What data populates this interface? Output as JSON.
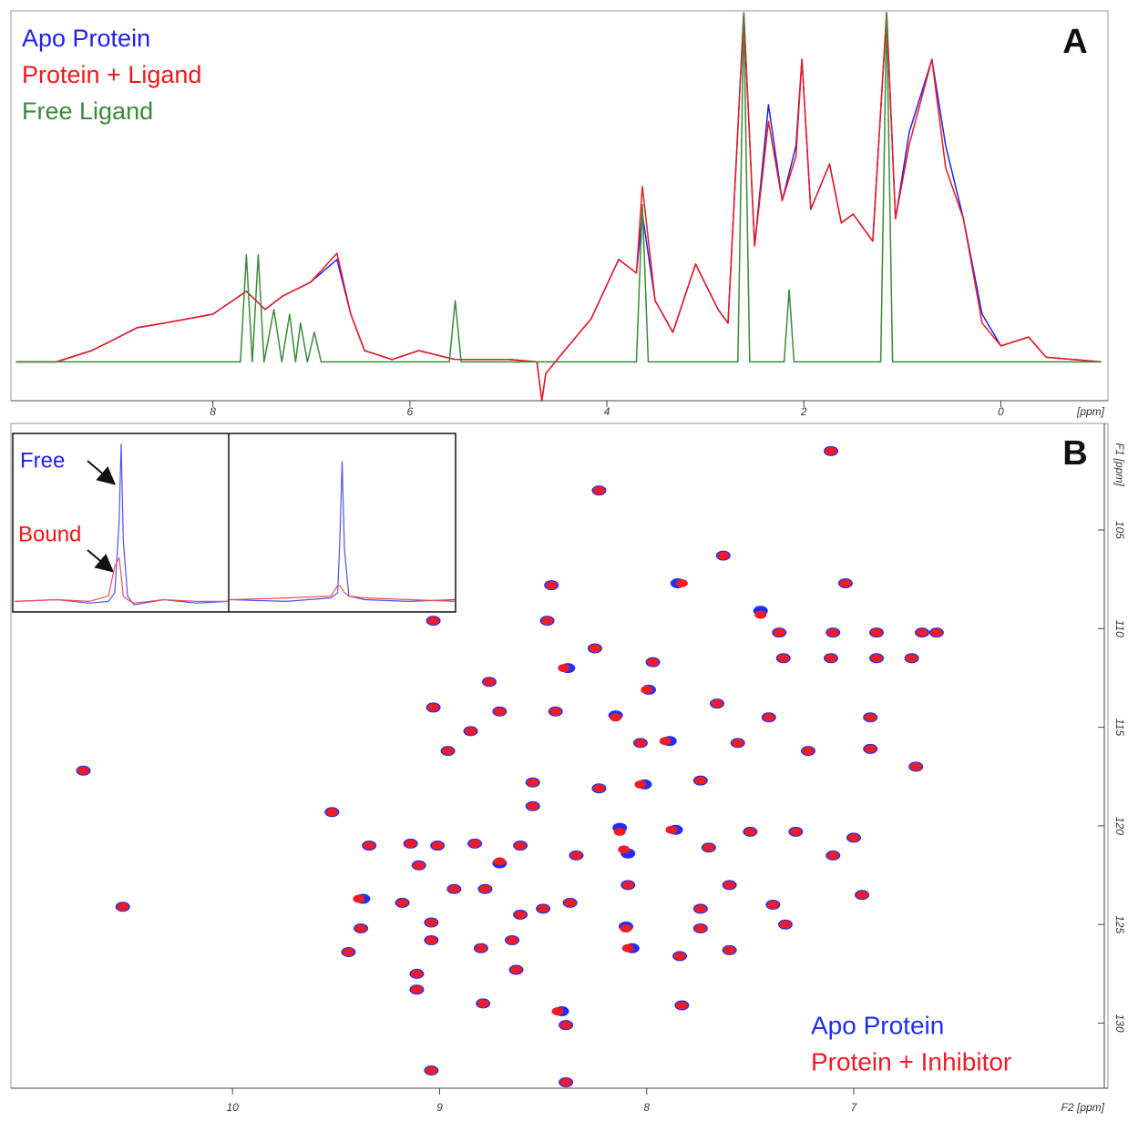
{
  "chart_data": [
    {
      "type": "line",
      "panel_label": "A",
      "xlabel": "[ppm]",
      "legend": "upper left",
      "xlim": [
        10.05,
        -1.05
      ],
      "ylim": [
        -10,
        90
      ],
      "xticks": [
        8,
        6,
        4,
        2,
        0
      ],
      "series": [
        {
          "name": "Apo Protein",
          "color": "#2020f0",
          "x": [
            10.0,
            9.59,
            9.23,
            9.04,
            8.77,
            8.49,
            8.0,
            7.66,
            7.47,
            7.29,
            7.01,
            6.74,
            6.6,
            6.46,
            6.18,
            5.91,
            5.54,
            4.99,
            4.71,
            4.66,
            4.62,
            4.43,
            4.16,
            3.88,
            3.7,
            3.64,
            3.51,
            3.33,
            3.1,
            2.87,
            2.77,
            2.61,
            2.5,
            2.36,
            2.22,
            2.08,
            2.02,
            1.93,
            1.74,
            1.62,
            1.5,
            1.3,
            1.16,
            1.07,
            0.93,
            0.7,
            0.56,
            0.38,
            0.19,
            0.0,
            -0.28,
            -0.46,
            -1.02
          ],
          "values": [
            0,
            0,
            2.9,
            5.3,
            8.8,
            10.0,
            12.3,
            18.2,
            13.5,
            17,
            20.5,
            26.4,
            12.3,
            2.9,
            0.6,
            2.9,
            0.6,
            0.6,
            0,
            -10,
            -3,
            2.9,
            11.1,
            26.4,
            22.9,
            38.1,
            15.8,
            7.6,
            25.2,
            13.5,
            10,
            90,
            29.9,
            66.3,
            41.6,
            55.7,
            78,
            39.3,
            51,
            35.8,
            38.1,
            31.1,
            90,
            36.9,
            59.2,
            78,
            55.7,
            36.9,
            12.3,
            4.1,
            6.4,
            1.2,
            0
          ]
        },
        {
          "name": "Protein + Ligand",
          "color": "#f01818",
          "x": [
            10.0,
            9.59,
            9.23,
            9.04,
            8.77,
            8.49,
            8.0,
            7.66,
            7.47,
            7.29,
            7.01,
            6.74,
            6.6,
            6.46,
            6.18,
            5.91,
            5.54,
            4.99,
            4.71,
            4.66,
            4.62,
            4.43,
            4.16,
            3.88,
            3.7,
            3.64,
            3.51,
            3.33,
            3.1,
            2.87,
            2.77,
            2.61,
            2.5,
            2.36,
            2.22,
            2.08,
            2.02,
            1.93,
            1.74,
            1.62,
            1.5,
            1.3,
            1.16,
            1.07,
            0.93,
            0.7,
            0.56,
            0.38,
            0.19,
            0.0,
            -0.28,
            -0.46,
            -1.02
          ],
          "values": [
            0,
            0,
            2.9,
            5.3,
            8.8,
            10.0,
            12.3,
            18.2,
            13.5,
            17,
            20.5,
            28,
            12.3,
            2.9,
            0.6,
            2.9,
            0.6,
            0.6,
            0,
            -10,
            -3,
            2.9,
            11.1,
            26.4,
            22.9,
            45.2,
            15.8,
            7.6,
            25.2,
            13.5,
            10,
            90,
            29.9,
            62,
            41.6,
            53,
            78,
            39.3,
            51,
            35.8,
            38.1,
            31.1,
            90,
            36.9,
            56,
            78,
            50,
            36.9,
            10,
            4.1,
            6.4,
            1.2,
            0
          ]
        },
        {
          "name": "Free Ligand",
          "color": "#3a8a3a",
          "x": [
            10.0,
            7.72,
            7.66,
            7.6,
            7.54,
            7.48,
            7.38,
            7.3,
            7.22,
            7.16,
            7.11,
            7.04,
            6.97,
            6.9,
            5.6,
            5.54,
            5.48,
            3.7,
            3.64,
            3.58,
            2.67,
            2.61,
            2.55,
            2.2,
            2.15,
            2.1,
            1.22,
            1.16,
            1.1,
            -1.02
          ],
          "values": [
            0,
            0,
            27.6,
            0,
            27.6,
            0,
            13.5,
            0,
            12.3,
            0,
            10,
            0,
            7.6,
            0,
            0,
            15.8,
            0,
            0,
            40.5,
            0,
            0,
            90,
            0,
            0,
            18.6,
            0,
            0,
            90,
            0,
            0
          ]
        }
      ]
    },
    {
      "type": "line",
      "xlim": [
        0,
        1
      ],
      "ylim": [
        0,
        100
      ],
      "annotations": [
        {
          "text": "Free",
          "color": "#2020f0"
        },
        {
          "text": "Bound",
          "color": "#f01818"
        }
      ],
      "series": [
        {
          "color": "#5050f5",
          "x": [
            0,
            0.2,
            0.35,
            0.44,
            0.47,
            0.49,
            0.5,
            0.51,
            0.53,
            0.56,
            0.7,
            0.85,
            1.0
          ],
          "values": [
            5,
            6,
            4,
            5,
            10,
            50,
            95,
            40,
            8,
            3,
            6,
            4,
            5
          ]
        },
        {
          "color": "#f05050",
          "x": [
            0,
            0.2,
            0.35,
            0.44,
            0.47,
            0.49,
            0.5,
            0.51,
            0.53,
            0.56,
            0.7,
            0.85,
            1.0
          ],
          "values": [
            5,
            6,
            5,
            8,
            25,
            30,
            20,
            8,
            6,
            4,
            6,
            5,
            5
          ]
        }
      ]
    },
    {
      "type": "line",
      "xlim": [
        0,
        1
      ],
      "ylim": [
        0,
        100
      ],
      "series": [
        {
          "color": "#5050f5",
          "x": [
            0,
            0.25,
            0.45,
            0.48,
            0.49,
            0.5,
            0.51,
            0.53,
            0.6,
            0.8,
            1.0
          ],
          "values": [
            6,
            5,
            7,
            10,
            40,
            85,
            35,
            8,
            6,
            5,
            6
          ]
        },
        {
          "color": "#f05050",
          "x": [
            0,
            0.25,
            0.45,
            0.48,
            0.49,
            0.5,
            0.51,
            0.53,
            0.6,
            0.8,
            1.0
          ],
          "values": [
            6,
            7,
            8,
            14,
            14,
            12,
            10,
            8,
            7,
            6,
            5
          ]
        }
      ]
    },
    {
      "type": "scatter",
      "panel_label": "B",
      "xlabel": "F2 [ppm]",
      "ylabel": "F1 [ppm]",
      "legend": "lower right",
      "xlim": [
        11.07,
        5.79
      ],
      "ylim": [
        133.3,
        99.6
      ],
      "xticks": [
        10,
        9,
        8,
        7
      ],
      "yticks": [
        105,
        110,
        115,
        120,
        125,
        130
      ],
      "series": [
        {
          "name": "Apo Protein",
          "color": "#1f2ff5",
          "x": [
            7.11,
            8.23,
            7.63,
            8.46,
            7.85,
            7.04,
            8.48,
            9.03,
            8.25,
            7.45,
            7.36,
            7.1,
            6.89,
            6.67,
            6.6,
            7.34,
            7.11,
            6.89,
            6.72,
            8.76,
            8.38,
            7.97,
            8.71,
            8.44,
            8.15,
            7.99,
            7.66,
            9.03,
            8.85,
            7.41,
            6.92,
            8.96,
            8.03,
            7.89,
            7.56,
            7.22,
            6.92,
            6.7,
            8.55,
            8.23,
            8.01,
            7.74,
            9.52,
            8.55,
            8.13,
            7.86,
            7.5,
            7.28,
            7.0,
            9.34,
            9.14,
            9.01,
            8.83,
            8.61,
            8.34,
            8.09,
            7.7,
            7.1,
            9.1,
            8.93,
            8.71,
            8.09,
            7.6,
            9.37,
            9.18,
            8.78,
            8.5,
            8.37,
            7.74,
            7.39,
            6.96,
            9.38,
            9.04,
            8.61,
            8.1,
            7.74,
            7.33,
            9.04,
            8.8,
            8.65,
            8.07,
            9.44,
            8.63,
            9.11,
            7.84,
            7.6,
            9.11,
            8.79,
            7.83,
            8.41,
            9.04,
            8.39,
            10.72,
            10.53,
            8.39
          ],
          "values": [
            101.0,
            103.0,
            106.3,
            107.8,
            107.7,
            107.7,
            109.6,
            109.6,
            111.0,
            109.1,
            110.2,
            110.2,
            110.2,
            110.2,
            110.2,
            111.5,
            111.5,
            111.5,
            111.5,
            112.7,
            112.0,
            111.7,
            114.2,
            114.2,
            114.4,
            113.1,
            113.8,
            114.0,
            115.2,
            114.5,
            114.5,
            116.2,
            115.8,
            115.7,
            115.8,
            116.2,
            116.1,
            117.0,
            117.8,
            118.1,
            117.9,
            117.7,
            119.3,
            119.0,
            120.1,
            120.2,
            120.3,
            120.3,
            120.6,
            121.0,
            120.9,
            121.0,
            120.9,
            121.0,
            121.5,
            121.4,
            121.1,
            121.5,
            122.0,
            123.2,
            121.9,
            123.0,
            123.0,
            123.7,
            123.9,
            123.2,
            124.2,
            123.9,
            124.2,
            124.0,
            123.5,
            125.2,
            124.9,
            124.5,
            125.1,
            125.2,
            125.0,
            125.8,
            126.2,
            125.8,
            126.2,
            126.4,
            127.3,
            127.5,
            126.6,
            126.3,
            128.3,
            129.0,
            129.1,
            129.4,
            132.4,
            133.0,
            117.2,
            124.1,
            130.1
          ]
        },
        {
          "name": "Protein + Inhibitor",
          "color": "#ee1c25",
          "x": [
            7.11,
            8.23,
            7.63,
            8.46,
            7.83,
            7.04,
            8.48,
            9.03,
            8.25,
            7.45,
            7.36,
            7.1,
            6.89,
            6.67,
            6.6,
            7.34,
            7.11,
            6.89,
            6.72,
            8.76,
            8.4,
            7.97,
            8.71,
            8.44,
            8.15,
            8.0,
            7.66,
            9.03,
            8.85,
            7.41,
            6.92,
            8.96,
            8.03,
            7.91,
            7.56,
            7.22,
            6.92,
            6.7,
            8.55,
            8.23,
            8.03,
            7.74,
            9.52,
            8.55,
            8.13,
            7.88,
            7.5,
            7.28,
            7.0,
            9.34,
            9.14,
            9.01,
            8.83,
            8.61,
            8.34,
            8.11,
            7.7,
            7.1,
            9.1,
            8.93,
            8.71,
            8.09,
            7.6,
            9.39,
            9.18,
            8.78,
            8.5,
            8.37,
            7.74,
            7.39,
            6.96,
            9.38,
            9.04,
            8.61,
            8.1,
            7.74,
            7.33,
            9.04,
            8.8,
            8.65,
            8.09,
            9.44,
            8.63,
            9.11,
            7.84,
            7.6,
            9.11,
            8.79,
            7.83,
            8.43,
            9.04,
            8.39,
            10.72,
            10.53,
            8.39
          ],
          "values": [
            101.0,
            103.0,
            106.3,
            107.8,
            107.7,
            107.7,
            109.6,
            109.6,
            111.0,
            109.3,
            110.2,
            110.2,
            110.2,
            110.2,
            110.2,
            111.5,
            111.5,
            111.5,
            111.5,
            112.7,
            112.0,
            111.7,
            114.2,
            114.2,
            114.5,
            113.1,
            113.8,
            114.0,
            115.2,
            114.5,
            114.5,
            116.2,
            115.8,
            115.7,
            115.8,
            116.2,
            116.1,
            117.0,
            117.8,
            118.1,
            117.9,
            117.7,
            119.3,
            119.0,
            120.3,
            120.2,
            120.3,
            120.3,
            120.6,
            121.0,
            120.9,
            121.0,
            120.9,
            121.0,
            121.5,
            121.2,
            121.1,
            121.5,
            122.0,
            123.2,
            121.8,
            123.0,
            123.0,
            123.7,
            123.9,
            123.2,
            124.2,
            123.9,
            124.2,
            124.0,
            123.5,
            125.2,
            124.9,
            124.5,
            125.2,
            125.2,
            125.0,
            125.8,
            126.2,
            125.8,
            126.2,
            126.4,
            127.3,
            127.5,
            126.6,
            126.3,
            128.3,
            129.0,
            129.1,
            129.4,
            132.4,
            133.0,
            117.2,
            124.1,
            130.1
          ]
        }
      ]
    }
  ]
}
